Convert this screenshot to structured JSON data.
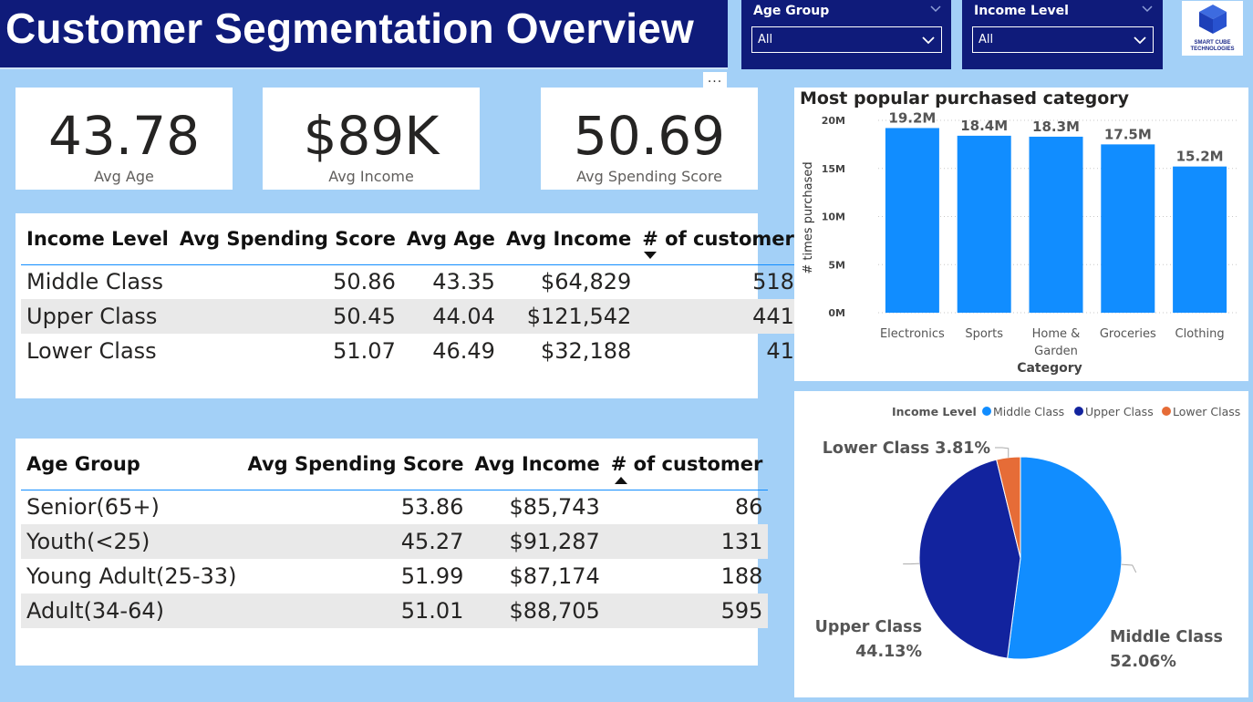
{
  "header": {
    "title": "Customer Segmentation Overview"
  },
  "filters": {
    "age_group": {
      "label": "Age Group",
      "value": "All"
    },
    "income_level": {
      "label": "Income Level",
      "value": "All"
    }
  },
  "logo": {
    "line1": "SMART CUBE",
    "line2": "TECHNOLOGIES"
  },
  "more_options": "...",
  "kpis": [
    {
      "value": "43.78",
      "label": "Avg Age"
    },
    {
      "value": "$89K",
      "label": "Avg Income"
    },
    {
      "value": "50.69",
      "label": "Avg Spending Score"
    }
  ],
  "income_table": {
    "headers": [
      "Income Level",
      "Avg Spending Score",
      "Avg Age",
      "Avg Income",
      "# of customer"
    ],
    "sort": "descending",
    "rows": [
      [
        "Middle Class",
        "50.86",
        "43.35",
        "$64,829",
        "518"
      ],
      [
        "Upper Class",
        "50.45",
        "44.04",
        "$121,542",
        "441"
      ],
      [
        "Lower Class",
        "51.07",
        "46.49",
        "$32,188",
        "41"
      ]
    ]
  },
  "age_table": {
    "headers": [
      "Age Group",
      "Avg Spending Score",
      "Avg Income",
      "# of customer"
    ],
    "sort": "ascending",
    "rows": [
      [
        "Senior(65+)",
        "53.86",
        "$85,743",
        "86"
      ],
      [
        "Youth(<25)",
        "45.27",
        "$91,287",
        "131"
      ],
      [
        "Young Adult(25-33)",
        "51.99",
        "$87,174",
        "188"
      ],
      [
        "Adult(34-64)",
        "51.01",
        "$88,705",
        "595"
      ]
    ]
  },
  "chart_data": [
    {
      "type": "bar",
      "title": "Most popular purchased category",
      "xlabel": "Category",
      "ylabel": "# times purchased",
      "categories": [
        "Electronics",
        "Sports",
        "Home & Garden",
        "Groceries",
        "Clothing"
      ],
      "category_lines": [
        [
          "Electronics"
        ],
        [
          "Sports"
        ],
        [
          "Home &",
          "Garden"
        ],
        [
          "Groceries"
        ],
        [
          "Clothing"
        ]
      ],
      "values": [
        19.2,
        18.4,
        18.3,
        17.5,
        15.2
      ],
      "value_labels": [
        "19.2M",
        "18.4M",
        "18.3M",
        "17.5M",
        "15.2M"
      ],
      "ylim": [
        0,
        20
      ],
      "yticks": [
        0,
        5,
        10,
        15,
        20
      ],
      "ytick_labels": [
        "0M",
        "5M",
        "10M",
        "15M",
        "20M"
      ],
      "color": "#118dff"
    },
    {
      "type": "pie",
      "legend_title": "Income Level",
      "legend_position": "top-right",
      "slices": [
        {
          "name": "Middle Class",
          "value": 52.06,
          "label": "52.06%",
          "color": "#118dff"
        },
        {
          "name": "Upper Class",
          "value": 44.13,
          "label": "44.13%",
          "color": "#12239e"
        },
        {
          "name": "Lower Class",
          "value": 3.81,
          "label": "3.81%",
          "color": "#e66c37"
        }
      ]
    }
  ]
}
